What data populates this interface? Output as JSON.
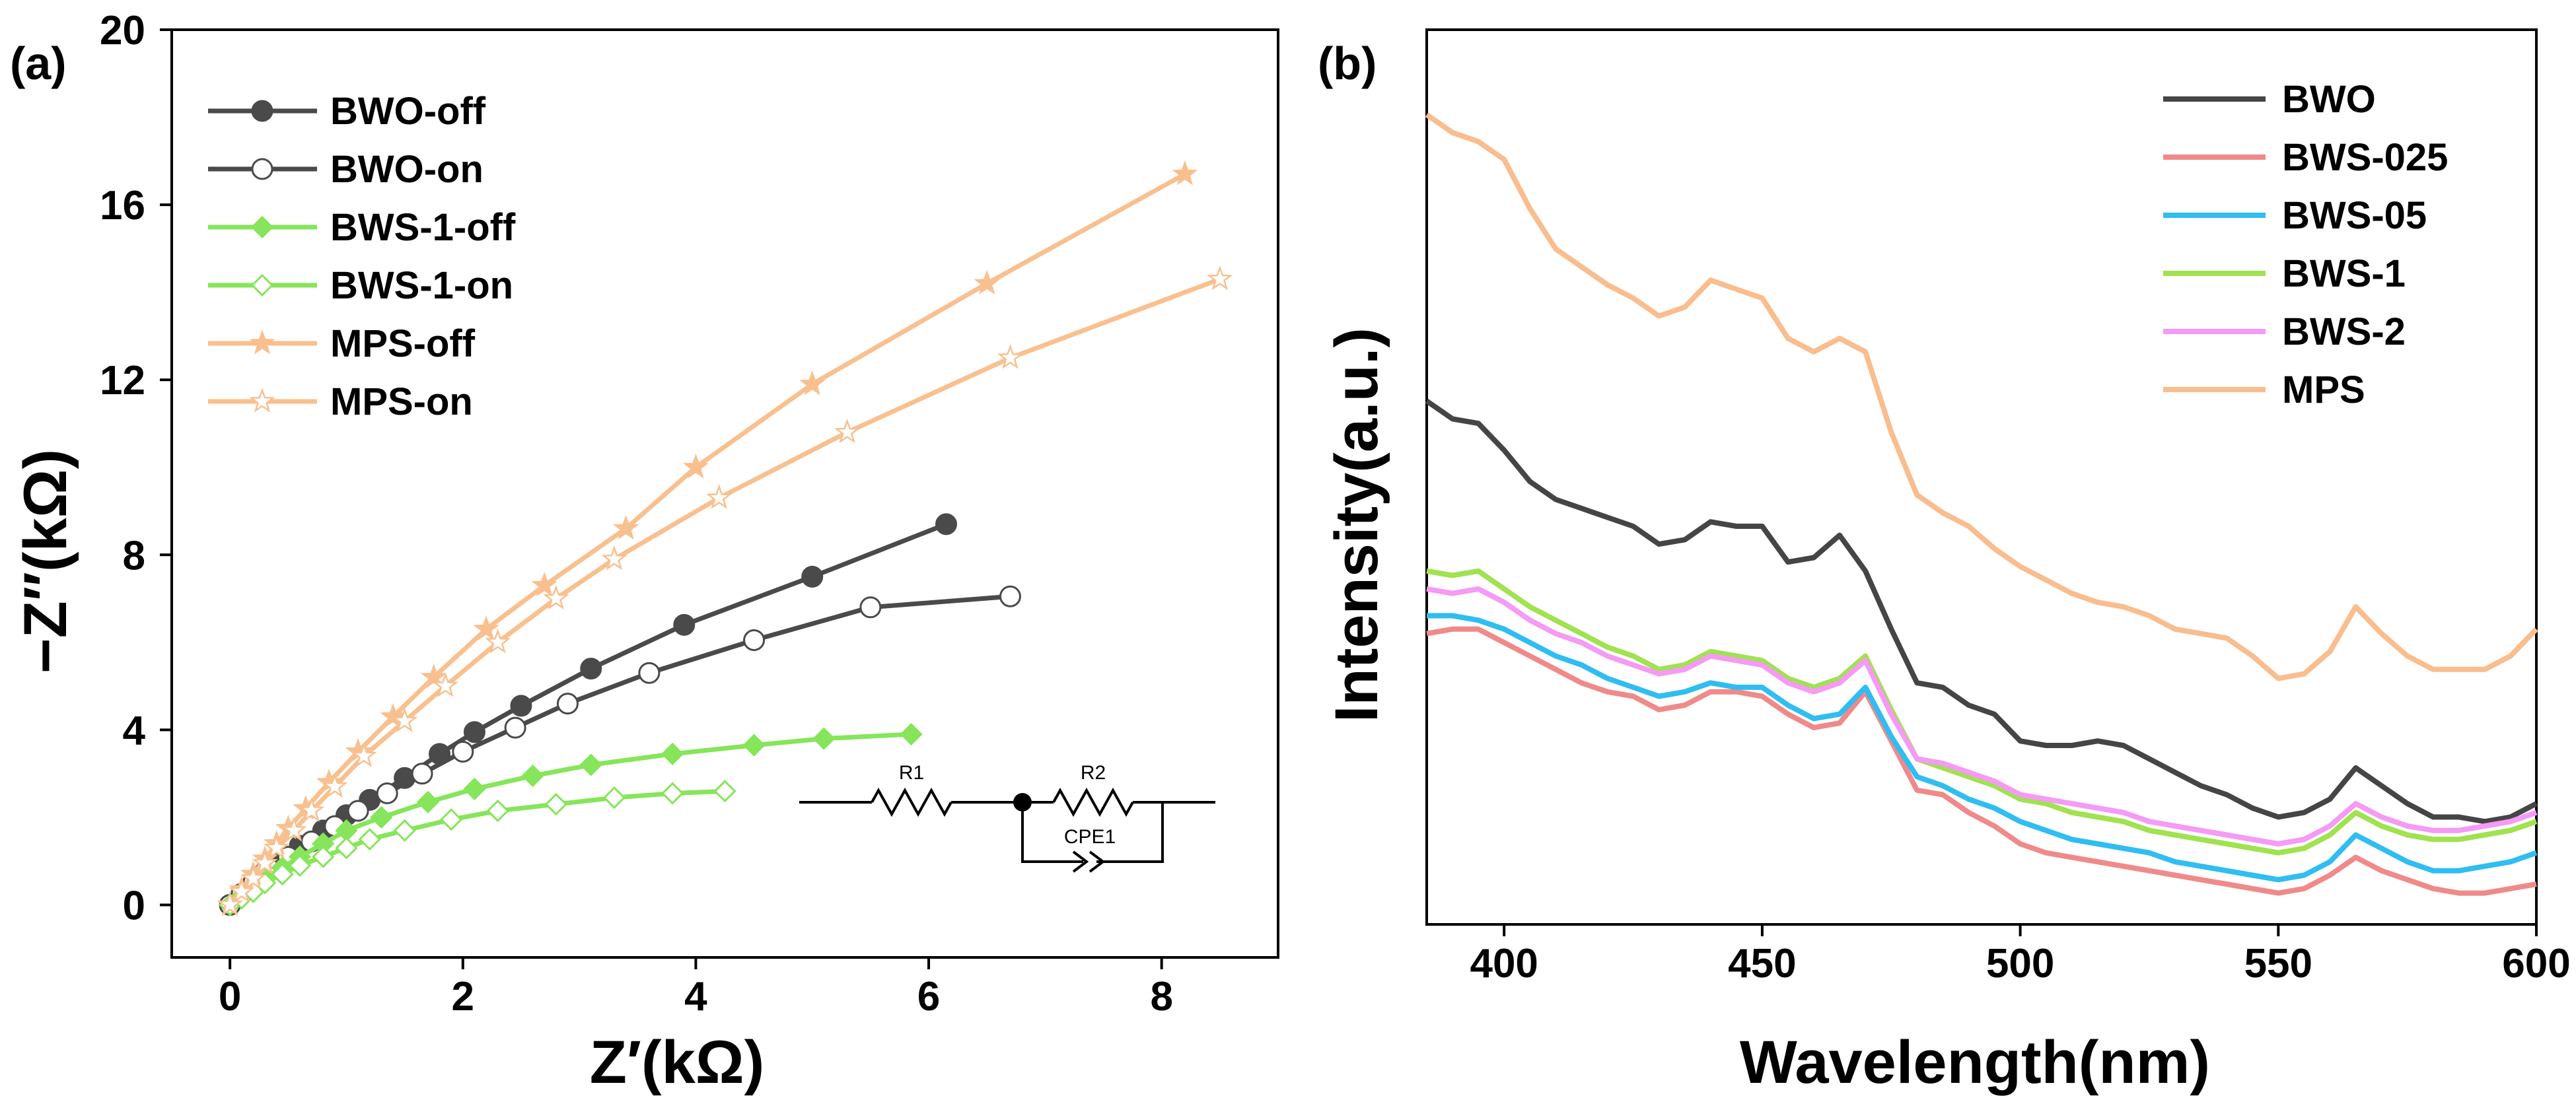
{
  "chart_data": [
    {
      "panel_label": "(a)",
      "type": "scatter",
      "xlabel": "Z′(kΩ)",
      "ylabel": "−Z″(kΩ)",
      "xlim": [
        -0.5,
        9.0
      ],
      "ylim": [
        -1.2,
        20
      ],
      "xticks": [
        0,
        2,
        4,
        6,
        8
      ],
      "yticks": [
        0,
        4,
        8,
        12,
        16,
        20
      ],
      "series": [
        {
          "name": "BWO-off",
          "color": "#4a4a4a",
          "marker": "circle",
          "filled": true,
          "x": [
            0,
            0.1,
            0.2,
            0.3,
            0.45,
            0.6,
            0.8,
            1.0,
            1.2,
            1.5,
            1.8,
            2.1,
            2.5,
            3.1,
            3.9,
            5.0,
            6.15
          ],
          "y": [
            0,
            0.25,
            0.5,
            0.75,
            1.05,
            1.35,
            1.7,
            2.05,
            2.4,
            2.9,
            3.45,
            3.95,
            4.55,
            5.4,
            6.4,
            7.5,
            8.7
          ]
        },
        {
          "name": "BWO-on",
          "color": "#4a4a4a",
          "marker": "circle",
          "filled": false,
          "x": [
            0,
            0.1,
            0.2,
            0.35,
            0.5,
            0.7,
            0.9,
            1.1,
            1.35,
            1.65,
            2.0,
            2.45,
            2.9,
            3.6,
            4.5,
            5.5,
            6.7
          ],
          "y": [
            0,
            0.25,
            0.5,
            0.8,
            1.1,
            1.45,
            1.8,
            2.15,
            2.55,
            3.0,
            3.5,
            4.05,
            4.6,
            5.3,
            6.05,
            6.8,
            7.05
          ]
        },
        {
          "name": "BWS-1-off",
          "color": "#86e55a",
          "marker": "diamond",
          "filled": true,
          "x": [
            0,
            0.1,
            0.2,
            0.3,
            0.45,
            0.6,
            0.8,
            1.0,
            1.3,
            1.7,
            2.1,
            2.6,
            3.1,
            3.8,
            4.5,
            5.1,
            5.85
          ],
          "y": [
            0,
            0.2,
            0.4,
            0.6,
            0.85,
            1.1,
            1.4,
            1.7,
            2.0,
            2.35,
            2.65,
            2.95,
            3.2,
            3.45,
            3.65,
            3.8,
            3.9
          ]
        },
        {
          "name": "BWS-1-on",
          "color": "#86e55a",
          "marker": "diamond",
          "filled": false,
          "x": [
            0,
            0.1,
            0.2,
            0.3,
            0.45,
            0.6,
            0.8,
            1.0,
            1.2,
            1.5,
            1.9,
            2.3,
            2.8,
            3.3,
            3.8,
            4.25
          ],
          "y": [
            0,
            0.15,
            0.3,
            0.5,
            0.7,
            0.9,
            1.1,
            1.3,
            1.5,
            1.7,
            1.95,
            2.15,
            2.3,
            2.45,
            2.55,
            2.6
          ]
        },
        {
          "name": "MPS-off",
          "color": "#f9c08f",
          "marker": "star",
          "filled": true,
          "x": [
            0,
            0.1,
            0.2,
            0.3,
            0.4,
            0.5,
            0.65,
            0.85,
            1.1,
            1.4,
            1.75,
            2.2,
            2.7,
            3.4,
            4.0,
            5.0,
            6.5,
            8.2
          ],
          "y": [
            0,
            0.35,
            0.7,
            1.05,
            1.4,
            1.75,
            2.2,
            2.8,
            3.5,
            4.3,
            5.2,
            6.3,
            7.3,
            8.6,
            10.0,
            11.9,
            14.2,
            16.7
          ]
        },
        {
          "name": "MPS-on",
          "color": "#f9c08f",
          "marker": "star",
          "filled": false,
          "x": [
            0,
            0.1,
            0.2,
            0.3,
            0.4,
            0.55,
            0.7,
            0.9,
            1.15,
            1.5,
            1.85,
            2.3,
            2.8,
            3.3,
            4.2,
            5.3,
            6.7,
            8.5
          ],
          "y": [
            0,
            0.3,
            0.6,
            0.95,
            1.3,
            1.7,
            2.15,
            2.7,
            3.4,
            4.2,
            5.0,
            6.0,
            7.0,
            7.9,
            9.3,
            10.8,
            12.5,
            14.3
          ]
        }
      ],
      "circuit_labels": [
        "R1",
        "R2",
        "CPE1"
      ]
    },
    {
      "panel_label": "(b)",
      "type": "line",
      "xlabel": "Wavelength(nm)",
      "ylabel": "Intensity(a.u.)",
      "xlim": [
        385,
        600
      ],
      "ylim": [
        0,
        1
      ],
      "xticks": [
        400,
        450,
        500,
        550,
        600
      ],
      "yticks": [],
      "x": [
        385,
        390,
        395,
        400,
        405,
        410,
        415,
        420,
        425,
        430,
        435,
        440,
        445,
        450,
        455,
        460,
        465,
        470,
        475,
        480,
        485,
        490,
        495,
        500,
        505,
        510,
        515,
        520,
        525,
        530,
        535,
        540,
        545,
        550,
        555,
        560,
        565,
        570,
        575,
        580,
        585,
        590,
        595,
        600
      ],
      "series": [
        {
          "name": "BWO",
          "color": "#454545",
          "values": [
            0.585,
            0.565,
            0.56,
            0.53,
            0.495,
            0.475,
            0.465,
            0.455,
            0.445,
            0.425,
            0.43,
            0.45,
            0.445,
            0.445,
            0.405,
            0.41,
            0.435,
            0.395,
            0.33,
            0.27,
            0.265,
            0.245,
            0.235,
            0.205,
            0.2,
            0.2,
            0.205,
            0.2,
            0.185,
            0.17,
            0.155,
            0.145,
            0.13,
            0.12,
            0.125,
            0.14,
            0.175,
            0.155,
            0.135,
            0.12,
            0.12,
            0.115,
            0.12,
            0.135
          ]
        },
        {
          "name": "BWS-025",
          "color": "#f08a8a",
          "values": [
            0.325,
            0.33,
            0.33,
            0.315,
            0.3,
            0.285,
            0.27,
            0.26,
            0.255,
            0.24,
            0.245,
            0.26,
            0.26,
            0.255,
            0.235,
            0.22,
            0.225,
            0.26,
            0.205,
            0.15,
            0.145,
            0.125,
            0.11,
            0.09,
            0.08,
            0.075,
            0.07,
            0.065,
            0.06,
            0.055,
            0.05,
            0.045,
            0.04,
            0.035,
            0.04,
            0.055,
            0.075,
            0.06,
            0.05,
            0.04,
            0.035,
            0.035,
            0.04,
            0.045
          ]
        },
        {
          "name": "BWS-05",
          "color": "#2fbdf2",
          "values": [
            0.345,
            0.345,
            0.34,
            0.33,
            0.315,
            0.3,
            0.29,
            0.275,
            0.265,
            0.255,
            0.26,
            0.27,
            0.265,
            0.265,
            0.245,
            0.23,
            0.235,
            0.265,
            0.21,
            0.165,
            0.155,
            0.14,
            0.13,
            0.115,
            0.105,
            0.095,
            0.09,
            0.085,
            0.08,
            0.07,
            0.065,
            0.06,
            0.055,
            0.05,
            0.055,
            0.07,
            0.1,
            0.085,
            0.07,
            0.06,
            0.06,
            0.065,
            0.07,
            0.08
          ]
        },
        {
          "name": "BWS-1",
          "color": "#a0e24f",
          "values": [
            0.395,
            0.39,
            0.395,
            0.375,
            0.355,
            0.34,
            0.325,
            0.31,
            0.3,
            0.285,
            0.29,
            0.305,
            0.3,
            0.295,
            0.275,
            0.265,
            0.275,
            0.3,
            0.24,
            0.185,
            0.175,
            0.165,
            0.155,
            0.14,
            0.135,
            0.125,
            0.12,
            0.115,
            0.105,
            0.1,
            0.095,
            0.09,
            0.085,
            0.08,
            0.085,
            0.1,
            0.125,
            0.11,
            0.1,
            0.095,
            0.095,
            0.1,
            0.105,
            0.115
          ]
        },
        {
          "name": "BWS-2",
          "color": "#f59af5",
          "values": [
            0.375,
            0.37,
            0.375,
            0.36,
            0.34,
            0.325,
            0.315,
            0.3,
            0.29,
            0.28,
            0.285,
            0.3,
            0.295,
            0.29,
            0.27,
            0.26,
            0.27,
            0.295,
            0.235,
            0.185,
            0.18,
            0.17,
            0.16,
            0.145,
            0.14,
            0.135,
            0.13,
            0.125,
            0.115,
            0.11,
            0.105,
            0.1,
            0.095,
            0.09,
            0.095,
            0.11,
            0.135,
            0.12,
            0.11,
            0.105,
            0.105,
            0.11,
            0.115,
            0.125
          ]
        },
        {
          "name": "MPS",
          "color": "#f9bd8e",
          "values": [
            0.905,
            0.885,
            0.875,
            0.855,
            0.8,
            0.755,
            0.735,
            0.715,
            0.7,
            0.68,
            0.69,
            0.72,
            0.71,
            0.7,
            0.655,
            0.64,
            0.655,
            0.64,
            0.55,
            0.48,
            0.46,
            0.445,
            0.42,
            0.4,
            0.385,
            0.37,
            0.36,
            0.355,
            0.345,
            0.33,
            0.325,
            0.32,
            0.3,
            0.275,
            0.28,
            0.305,
            0.355,
            0.325,
            0.3,
            0.285,
            0.285,
            0.285,
            0.3,
            0.33
          ]
        }
      ]
    }
  ]
}
